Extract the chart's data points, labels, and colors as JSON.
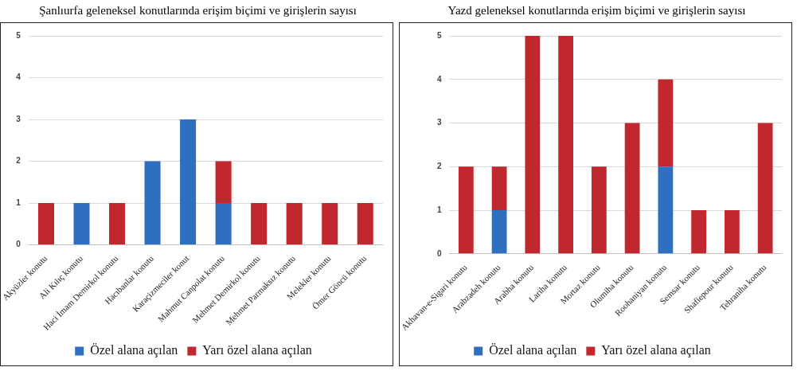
{
  "chart_data": [
    {
      "type": "bar",
      "title": "Şanlıurfa geleneksel konutlarında erişim biçimi ve girişlerin sayısı",
      "categories": [
        "Akyüzler konutu",
        "Ali Kılıç konutu",
        "Haci İmam Demirkol konutu",
        "Hacıbanlar konutu",
        "Karaçizmeciler konut",
        "Mahmut Canpolat konutu",
        "Mehmet Demirkol konutu",
        "Mehmet Parmaksız konutu",
        "Melekler konutu",
        "Ömer Göncü konutu"
      ],
      "stacked": true,
      "ylim": [
        0,
        5
      ],
      "yticks": [
        0,
        1,
        2,
        3,
        4,
        5
      ],
      "grid": "y",
      "legend": "bottom",
      "series": [
        {
          "name": "Özel alana açılan",
          "color": "#2e6fc0",
          "values": [
            0,
            1,
            0,
            2,
            3,
            1,
            0,
            0,
            0,
            0
          ]
        },
        {
          "name": "Yarı özel alana açılan",
          "color": "#c0282d",
          "values": [
            1,
            0,
            1,
            0,
            0,
            1,
            1,
            1,
            1,
            1
          ]
        }
      ]
    },
    {
      "type": "bar",
      "title": "Yazd geleneksel konutlarında erişim biçimi ve girişlerin sayısı",
      "categories": [
        "Akhavan-e-Sigari konutu",
        "Arabzadeh konutu",
        "Arabha konutu",
        "Lariha konutu",
        "Mortaz konutu",
        "Olumiha konutu",
        "Roohaniyan konutu",
        "Semsar konutu",
        "Shafiepour konutu",
        "Tehraniha konutu"
      ],
      "stacked": true,
      "ylim": [
        0,
        5
      ],
      "yticks": [
        0,
        1,
        2,
        3,
        4,
        5
      ],
      "grid": "y",
      "legend": "bottom",
      "series": [
        {
          "name": "Özel alana açılan",
          "color": "#2e6fc0",
          "values": [
            0,
            1,
            0,
            0,
            0,
            0,
            2,
            0,
            0,
            0
          ]
        },
        {
          "name": "Yarı özel alana açılan",
          "color": "#c0282d",
          "values": [
            2,
            1,
            5,
            5,
            2,
            3,
            2,
            1,
            1,
            3
          ]
        }
      ]
    }
  ]
}
